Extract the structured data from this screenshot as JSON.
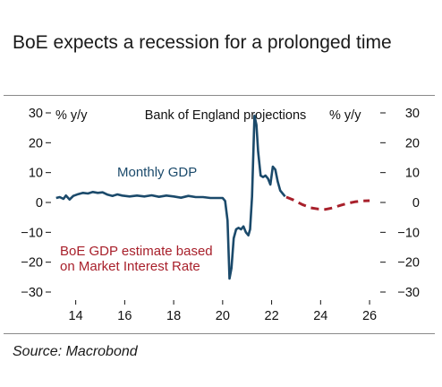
{
  "title": "BoE expects a recession for a prolonged time",
  "source": "Source: Macrobond",
  "chart_data": {
    "type": "line",
    "title": "Bank of England projections",
    "ylabel_left": "% y/y",
    "ylabel_right": "% y/y",
    "ylim": [
      -30,
      30
    ],
    "yticks": [
      30,
      20,
      10,
      0,
      -10,
      -20,
      -30
    ],
    "ytick_labels": [
      "30",
      "20",
      "10",
      "0",
      "-10",
      "-20",
      "-30"
    ],
    "xlim": [
      2013.1,
      2026.4
    ],
    "xticks": [
      14,
      16,
      18,
      20,
      22,
      24,
      26
    ],
    "xtick_labels": [
      "14",
      "16",
      "18",
      "20",
      "22",
      "24",
      "26"
    ],
    "grid": false,
    "colors": {
      "gdp": "#1b4a6b",
      "forecast": "#a8202b"
    },
    "series": [
      {
        "name": "Monthly GDP",
        "style": "solid",
        "x": [
          2013.2,
          2013.35,
          2013.5,
          2013.6,
          2013.75,
          2013.9,
          2014.1,
          2014.3,
          2014.5,
          2014.7,
          2014.9,
          2015.1,
          2015.3,
          2015.5,
          2015.7,
          2015.9,
          2016.2,
          2016.5,
          2016.8,
          2017.1,
          2017.4,
          2017.7,
          2018.0,
          2018.3,
          2018.6,
          2018.9,
          2019.2,
          2019.5,
          2019.8,
          2020.0,
          2020.1,
          2020.2,
          2020.28,
          2020.36,
          2020.45,
          2020.55,
          2020.65,
          2020.75,
          2020.85,
          2020.95,
          2021.05,
          2021.12,
          2021.2,
          2021.3,
          2021.38,
          2021.45,
          2021.55,
          2021.65,
          2021.75,
          2021.85,
          2021.95,
          2022.05,
          2022.15,
          2022.25,
          2022.35,
          2022.45,
          2022.55
        ],
        "y": [
          1.5,
          1.8,
          1.2,
          2.3,
          1.0,
          2.2,
          2.8,
          3.2,
          3.0,
          3.5,
          3.2,
          3.4,
          2.6,
          2.2,
          2.7,
          2.3,
          2.0,
          2.3,
          2.0,
          2.4,
          1.9,
          2.3,
          2.0,
          1.6,
          2.2,
          1.8,
          1.8,
          1.5,
          1.5,
          1.5,
          0.5,
          -6.0,
          -25.5,
          -22.0,
          -12.0,
          -9.0,
          -8.5,
          -9.0,
          -8.0,
          -10.0,
          -11.0,
          -9.0,
          2.0,
          29.0,
          26.0,
          17.0,
          9.0,
          8.5,
          9.0,
          8.0,
          6.0,
          12.0,
          11.0,
          7.0,
          4.0,
          3.0,
          2.0
        ]
      },
      {
        "name": "BoE GDP estimate based on Market Interest Rate",
        "style": "dashed",
        "x": [
          2022.6,
          2022.9,
          2023.25,
          2023.6,
          2023.9,
          2024.2,
          2024.5,
          2024.8,
          2025.1,
          2025.4,
          2025.7,
          2026.0
        ],
        "y": [
          1.8,
          0.8,
          -0.7,
          -1.8,
          -2.2,
          -2.3,
          -1.8,
          -1.0,
          -0.3,
          0.2,
          0.5,
          0.6
        ]
      }
    ],
    "annotations": [
      "Monthly GDP",
      "BoE GDP estimate based",
      "on Market Interest Rate"
    ]
  }
}
